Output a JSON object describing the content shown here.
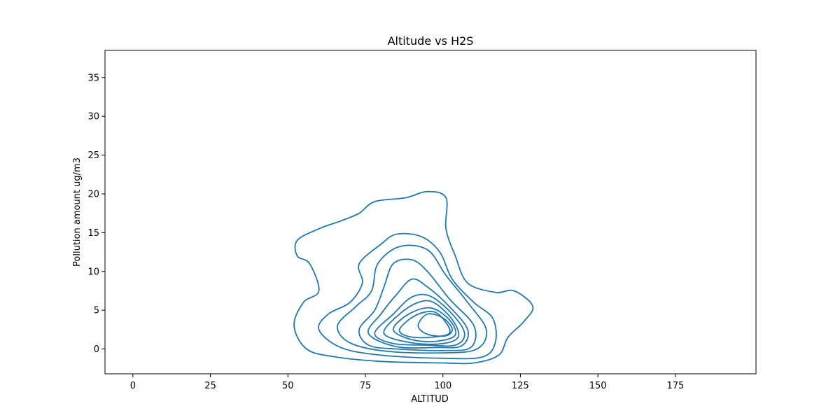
{
  "chart_data": {
    "type": "contour",
    "title": "Altitude vs H2S",
    "xlabel": "ALTITUD",
    "ylabel": "Pollution amount ug/m3",
    "xlim": [
      -9,
      201
    ],
    "ylim": [
      -3.2,
      38.5
    ],
    "xticks": [
      0,
      25,
      50,
      75,
      100,
      125,
      150,
      175
    ],
    "yticks": [
      0,
      5,
      10,
      15,
      20,
      25,
      30,
      35
    ],
    "grid": false,
    "line_color": "#1f77b4",
    "contours": [
      {
        "level": 1,
        "points": [
          [
            52,
            3
          ],
          [
            55,
            6
          ],
          [
            60,
            7.5
          ],
          [
            57,
            11
          ],
          [
            53,
            12
          ],
          [
            53,
            14
          ],
          [
            60,
            15.5
          ],
          [
            67,
            16.5
          ],
          [
            73,
            17.5
          ],
          [
            78,
            19
          ],
          [
            88,
            19.5
          ],
          [
            95,
            20.3
          ],
          [
            101,
            19.5
          ],
          [
            101,
            15.5
          ],
          [
            104,
            12
          ],
          [
            108,
            8.5
          ],
          [
            117,
            7.3
          ],
          [
            123,
            7.5
          ],
          [
            129,
            5.5
          ],
          [
            126,
            3.5
          ],
          [
            121,
            1.5
          ],
          [
            118,
            -0.8
          ],
          [
            110,
            -1.8
          ],
          [
            100,
            -1.8
          ],
          [
            80,
            -1.6
          ],
          [
            65,
            -1
          ],
          [
            56,
            0
          ]
        ]
      },
      {
        "level": 2,
        "points": [
          [
            60,
            2.5
          ],
          [
            63,
            4.5
          ],
          [
            70,
            6
          ],
          [
            74,
            8.5
          ],
          [
            73,
            11
          ],
          [
            80,
            13.5
          ],
          [
            85,
            14.8
          ],
          [
            93,
            14.5
          ],
          [
            99,
            12.5
          ],
          [
            103,
            9
          ],
          [
            110,
            6
          ],
          [
            116,
            4
          ],
          [
            117,
            1
          ],
          [
            113,
            -1
          ],
          [
            100,
            -1.2
          ],
          [
            80,
            -0.8
          ],
          [
            67,
            0.2
          ]
        ]
      },
      {
        "level": 3,
        "points": [
          [
            66,
            3
          ],
          [
            72,
            5.5
          ],
          [
            77,
            7.5
          ],
          [
            79,
            11
          ],
          [
            86,
            13.2
          ],
          [
            95,
            12.8
          ],
          [
            101,
            9.5
          ],
          [
            108,
            6
          ],
          [
            114,
            2.5
          ],
          [
            111,
            0
          ],
          [
            100,
            -0.5
          ],
          [
            82,
            -0.3
          ],
          [
            70,
            0.8
          ]
        ]
      },
      {
        "level": 4,
        "points": [
          [
            73,
            2.5
          ],
          [
            78,
            5
          ],
          [
            81,
            8
          ],
          [
            84,
            11
          ],
          [
            90,
            11.5
          ],
          [
            95,
            10
          ],
          [
            102,
            6.5
          ],
          [
            110,
            3
          ],
          [
            109,
            0.2
          ],
          [
            100,
            -0.2
          ],
          [
            85,
            0
          ],
          [
            76,
            0.5
          ]
        ]
      },
      {
        "level": 5,
        "points": [
          [
            76,
            2
          ],
          [
            80,
            4.5
          ],
          [
            85,
            7
          ],
          [
            90,
            9
          ],
          [
            95,
            8
          ],
          [
            102,
            5.5
          ],
          [
            108,
            2.5
          ],
          [
            106,
            0.4
          ],
          [
            98,
            0.2
          ],
          [
            85,
            0.3
          ]
        ]
      },
      {
        "level": 6,
        "points": [
          [
            78,
            2
          ],
          [
            84,
            4.5
          ],
          [
            90,
            6.7
          ],
          [
            96,
            6.8
          ],
          [
            103,
            4.5
          ],
          [
            107,
            2
          ],
          [
            104,
            0.5
          ],
          [
            95,
            0.5
          ],
          [
            84,
            0.7
          ]
        ]
      },
      {
        "level": 7,
        "points": [
          [
            81,
            2
          ],
          [
            86,
            4.5
          ],
          [
            92,
            6
          ],
          [
            97,
            6
          ],
          [
            103,
            3.8
          ],
          [
            105,
            1.6
          ],
          [
            100,
            0.7
          ],
          [
            90,
            0.8
          ]
        ]
      },
      {
        "level": 8,
        "points": [
          [
            84,
            2.5
          ],
          [
            89,
            4.5
          ],
          [
            96,
            5.3
          ],
          [
            102,
            3.8
          ],
          [
            104,
            1.8
          ],
          [
            98,
            1
          ],
          [
            90,
            1.2
          ]
        ]
      },
      {
        "level": 9,
        "points": [
          [
            86,
            2.5
          ],
          [
            91,
            4.3
          ],
          [
            97,
            4.8
          ],
          [
            101,
            3.4
          ],
          [
            102,
            2
          ],
          [
            96,
            1.5
          ],
          [
            89,
            1.6
          ]
        ]
      },
      {
        "level": 10,
        "points": [
          [
            92,
            3
          ],
          [
            95,
            4.5
          ],
          [
            100,
            4
          ],
          [
            103,
            2.6
          ],
          [
            101,
            1.7
          ],
          [
            95,
            1.9
          ]
        ]
      }
    ]
  }
}
